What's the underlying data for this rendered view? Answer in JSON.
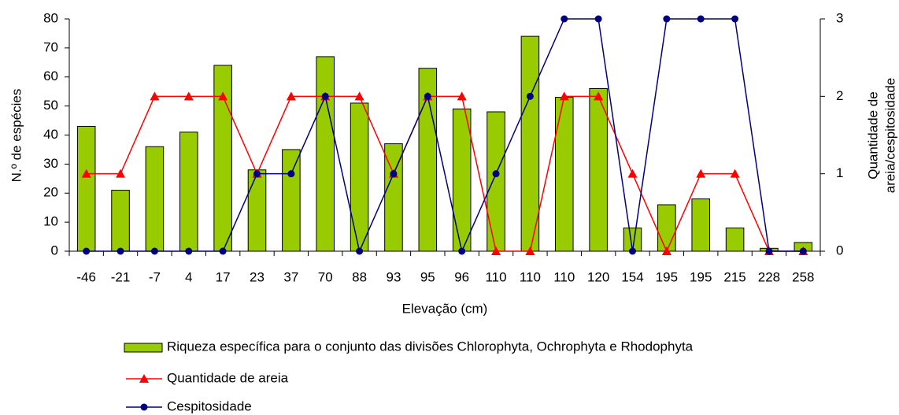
{
  "chart_data": {
    "type": "bar",
    "xlabel": "Elevação (cm)",
    "ylabel": "N.º de espécies",
    "y2label": [
      "Quantidade de",
      "areia/cespitosidade"
    ],
    "categories": [
      "-46",
      "-21",
      "-7",
      "4",
      "17",
      "23",
      "37",
      "70",
      "88",
      "93",
      "95",
      "96",
      "110",
      "110",
      "110",
      "120",
      "154",
      "195",
      "195",
      "215",
      "228",
      "258"
    ],
    "series": [
      {
        "name": "Riqueza específica para o conjunto das divisões Chlorophyta, Ochrophyta e  Rhodophyta",
        "type": "bar",
        "color": "#99cc00",
        "values": [
          43,
          21,
          36,
          41,
          64,
          28,
          35,
          67,
          51,
          37,
          63,
          49,
          48,
          74,
          53,
          56,
          8,
          16,
          18,
          8,
          1,
          3
        ]
      },
      {
        "name": "Quantidade de areia",
        "type": "line",
        "marker": "triangle",
        "axis": "y2",
        "color": "#ff0000",
        "values": [
          1,
          1,
          2,
          2,
          2,
          1,
          2,
          2,
          2,
          1,
          2,
          2,
          0,
          0,
          2,
          2,
          1,
          0,
          1,
          1,
          0,
          0
        ]
      },
      {
        "name": "Cespitosidade",
        "type": "line",
        "marker": "circle",
        "axis": "y2",
        "color": "#000080",
        "values": [
          0,
          0,
          0,
          0,
          0,
          1,
          1,
          2,
          0,
          1,
          2,
          0,
          1,
          2,
          3,
          3,
          0,
          3,
          3,
          3,
          0,
          0
        ]
      }
    ],
    "ylim": [
      0,
      80
    ],
    "yticks": [
      0,
      10,
      20,
      30,
      40,
      50,
      60,
      70,
      80
    ],
    "y2lim": [
      0,
      3
    ],
    "y2ticks": [
      0,
      1,
      2,
      3
    ],
    "grid": false
  }
}
